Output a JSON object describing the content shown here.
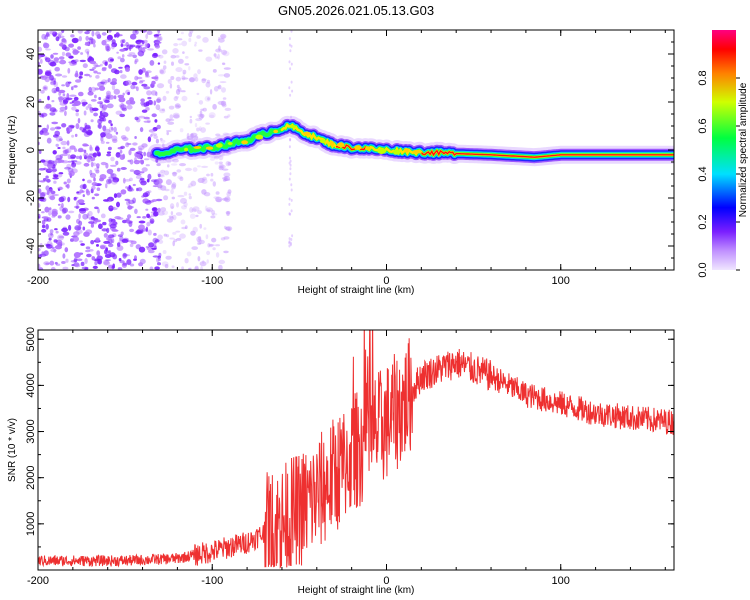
{
  "title": "GN05.2026.021.05.13.G03",
  "chart_data": [
    {
      "type": "heatmap",
      "name": "spectrogram",
      "xlabel": "Height of straight line (km)",
      "ylabel": "Frequency (Hz)",
      "xlim": [
        -200,
        165
      ],
      "ylim": [
        -50,
        50
      ],
      "xticks": [
        -200,
        -100,
        0,
        100
      ],
      "yticks": [
        -40,
        -20,
        0,
        20,
        40
      ],
      "colorbar": {
        "label": "Normalized spectral amplitude",
        "range": [
          0,
          1
        ],
        "ticks": [
          0.0,
          0.2,
          0.4,
          0.6,
          0.8
        ]
      },
      "signal_track": [
        {
          "x": -130,
          "f": -2
        },
        {
          "x": -120,
          "f": 0
        },
        {
          "x": -100,
          "f": 1
        },
        {
          "x": -80,
          "f": 4
        },
        {
          "x": -65,
          "f": 8
        },
        {
          "x": -55,
          "f": 10
        },
        {
          "x": -50,
          "f": 8
        },
        {
          "x": -40,
          "f": 5
        },
        {
          "x": -30,
          "f": 2
        },
        {
          "x": -20,
          "f": 1
        },
        {
          "x": 0,
          "f": 0
        },
        {
          "x": 20,
          "f": -1
        },
        {
          "x": 60,
          "f": -2
        },
        {
          "x": 85,
          "f": -3
        },
        {
          "x": 100,
          "f": -2
        },
        {
          "x": 165,
          "f": -2
        }
      ]
    },
    {
      "type": "line",
      "name": "snr",
      "xlabel": "Height of straight line (km)",
      "ylabel": "SNR (10 * v/v)",
      "xlim": [
        -200,
        165
      ],
      "ylim": [
        0,
        5200
      ],
      "xticks": [
        -200,
        -100,
        0,
        100
      ],
      "yticks": [
        1000,
        2000,
        3000,
        4000,
        5000
      ],
      "envelope": [
        {
          "x": -200,
          "y": 200
        },
        {
          "x": -150,
          "y": 200
        },
        {
          "x": -120,
          "y": 250
        },
        {
          "x": -100,
          "y": 400
        },
        {
          "x": -80,
          "y": 600
        },
        {
          "x": -60,
          "y": 1000
        },
        {
          "x": -40,
          "y": 1600
        },
        {
          "x": -20,
          "y": 2500
        },
        {
          "x": 0,
          "y": 3200
        },
        {
          "x": 10,
          "y": 3600
        },
        {
          "x": 20,
          "y": 4200
        },
        {
          "x": 40,
          "y": 4500
        },
        {
          "x": 60,
          "y": 4200
        },
        {
          "x": 80,
          "y": 3800
        },
        {
          "x": 100,
          "y": 3600
        },
        {
          "x": 120,
          "y": 3400
        },
        {
          "x": 140,
          "y": 3300
        },
        {
          "x": 165,
          "y": 3200
        }
      ]
    }
  ]
}
